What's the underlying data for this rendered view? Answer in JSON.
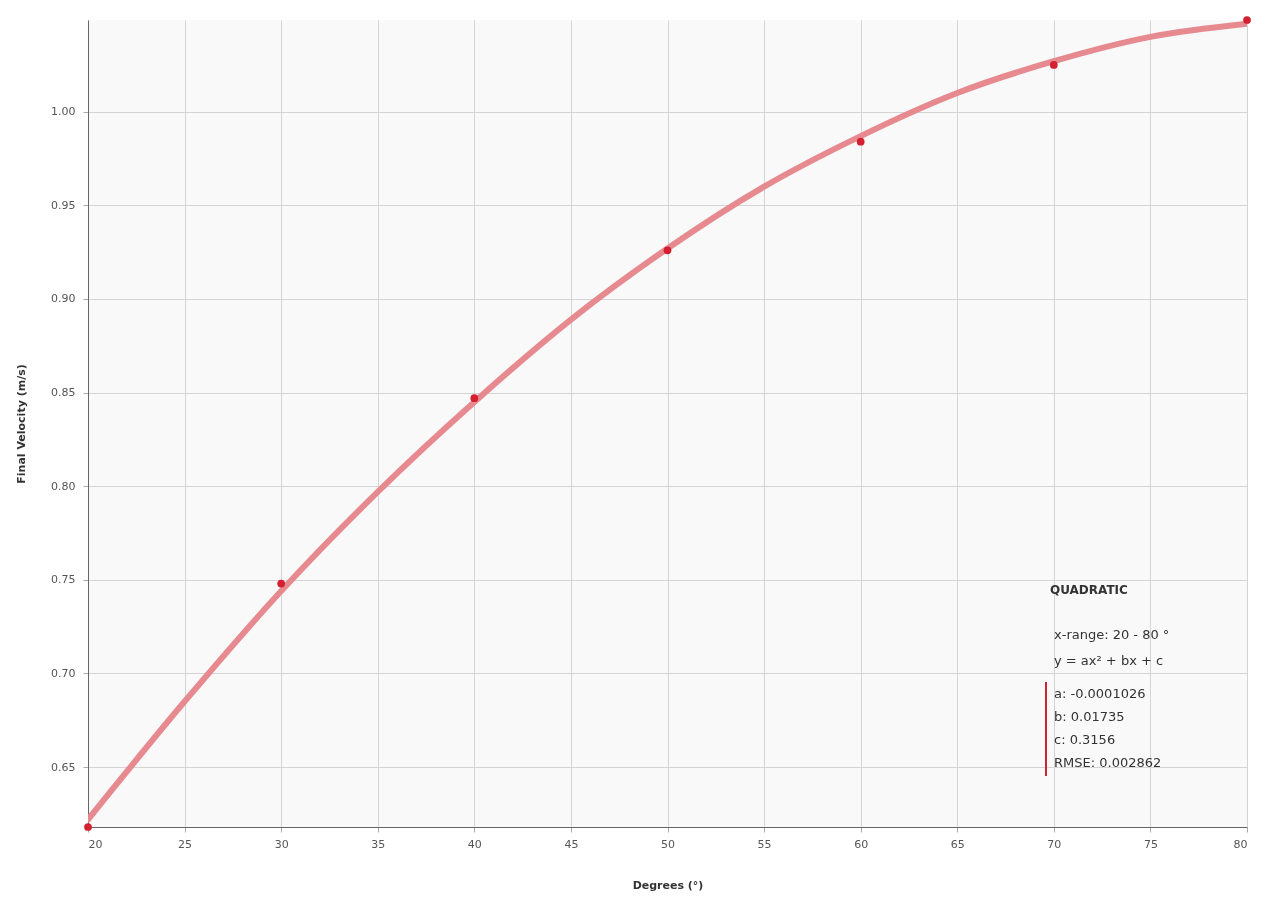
{
  "chart_data": {
    "type": "scatter",
    "xlabel": "Degrees (°)",
    "ylabel": "Final Velocity (m/s)",
    "xlim": [
      20,
      80
    ],
    "ylim": [
      0.618,
      1.049
    ],
    "xticks": [
      20,
      25,
      30,
      35,
      40,
      45,
      50,
      55,
      60,
      65,
      70,
      75,
      80
    ],
    "yticks": [
      {
        "value": 0.65,
        "label": "0.65"
      },
      {
        "value": 0.7,
        "label": "0.70"
      },
      {
        "value": 0.75,
        "label": "0.75"
      },
      {
        "value": 0.8,
        "label": "0.80"
      },
      {
        "value": 0.85,
        "label": "0.85"
      },
      {
        "value": 0.9,
        "label": "0.90"
      },
      {
        "value": 0.95,
        "label": "0.95"
      },
      {
        "value": 1.0,
        "label": "1.00"
      }
    ],
    "grid": true,
    "series": [
      {
        "type": "line",
        "color": "#e68a90",
        "marker": "none",
        "line_style": "solid",
        "x": [
          20,
          25,
          30,
          35,
          40,
          45,
          50,
          55,
          60,
          65,
          70,
          75,
          80
        ],
        "values": [
          0.622,
          0.685,
          0.744,
          0.797,
          0.845,
          0.889,
          0.927,
          0.96,
          0.987,
          1.01,
          1.027,
          1.04,
          1.047
        ]
      },
      {
        "color": "#d42030",
        "marker": "circle",
        "x": [
          20,
          30,
          40,
          50,
          60,
          70,
          80
        ],
        "values": [
          0.618,
          0.748,
          0.847,
          0.926,
          0.984,
          1.025,
          1.049
        ]
      }
    ],
    "annotations": [
      "QUADRATIC",
      "x-range: 20 - 80 °",
      "y = ax² + bx + c",
      "a: -0.0001026",
      "b: 0.01735",
      "c: 0.3156",
      "RMSE: 0.002862"
    ]
  }
}
